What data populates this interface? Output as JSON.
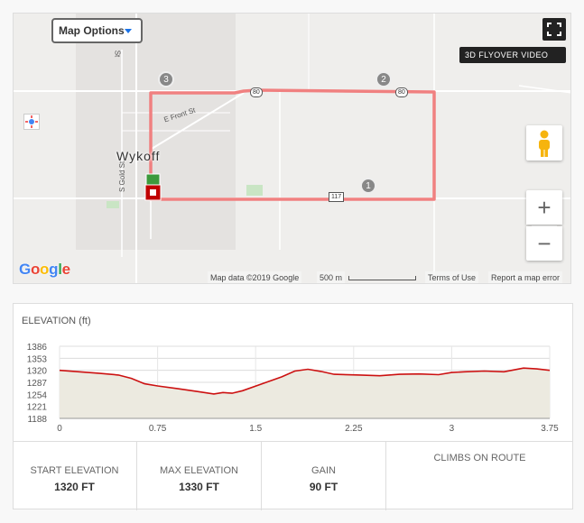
{
  "map": {
    "options_label": "Map Options",
    "flyover_label": "3D FLYOVER VIDEO",
    "zoom_in": "+",
    "zoom_out": "−",
    "town": "Wykoff",
    "roads": {
      "front_st": "E Front St",
      "gold_st": "S Gold St",
      "north_st": "St"
    },
    "highways": [
      "80",
      "80",
      "117"
    ],
    "waypoints": [
      "1",
      "2",
      "3"
    ],
    "attribution": {
      "map_data": "Map data ©2019 Google",
      "scale": "500 m",
      "terms": "Terms of Use",
      "report": "Report a map error"
    },
    "google_logo": [
      "G",
      "o",
      "o",
      "g",
      "l",
      "e"
    ],
    "colors": {
      "route": "#f08080",
      "google_blue": "#4285f4",
      "google_red": "#ea4335",
      "google_yellow": "#fbbc05",
      "google_green": "#34a853",
      "start_marker": "#3c9a3c",
      "end_marker": "#c00000"
    }
  },
  "elevation": {
    "title": "ELEVATION (ft)",
    "stats": [
      {
        "label": "START ELEVATION",
        "value": "1320 FT"
      },
      {
        "label": "MAX ELEVATION",
        "value": "1330 FT"
      },
      {
        "label": "GAIN",
        "value": "90 FT"
      },
      {
        "label": "CLIMBS ON ROUTE",
        "value": ""
      }
    ]
  },
  "chart_data": {
    "type": "area",
    "title": "ELEVATION (ft)",
    "xlabel": "",
    "ylabel": "",
    "xlim": [
      0,
      3.75
    ],
    "ylim": [
      1188,
      1386
    ],
    "x_ticks": [
      0,
      0.75,
      1.5,
      2.25,
      3,
      3.75
    ],
    "x_tick_labels": [
      "0",
      "0.75",
      "1.5",
      "2.25",
      "3",
      "3.75"
    ],
    "y_ticks": [
      1188,
      1221,
      1254,
      1287,
      1320,
      1353,
      1386
    ],
    "y_tick_labels": [
      "1188",
      "1221",
      "1254",
      "1287",
      "1320",
      "1353",
      "1386"
    ],
    "grid": true,
    "colors": {
      "line": "#cc1111",
      "fill": "#eceae0"
    },
    "series": [
      {
        "x": [
          0,
          0.15,
          0.3,
          0.45,
          0.55,
          0.65,
          0.75,
          0.9,
          1.05,
          1.18,
          1.25,
          1.32,
          1.4,
          1.55,
          1.7,
          1.8,
          1.9,
          2.0,
          2.1,
          2.3,
          2.45,
          2.6,
          2.75,
          2.9,
          3.0,
          3.1,
          3.25,
          3.4,
          3.55,
          3.65,
          3.75
        ],
        "y": [
          1320,
          1316,
          1312,
          1307,
          1298,
          1283,
          1277,
          1270,
          1262,
          1255,
          1259,
          1257,
          1264,
          1283,
          1302,
          1318,
          1323,
          1317,
          1309,
          1307,
          1305,
          1309,
          1310,
          1308,
          1314,
          1316,
          1318,
          1316,
          1326,
          1324,
          1320
        ]
      }
    ]
  }
}
